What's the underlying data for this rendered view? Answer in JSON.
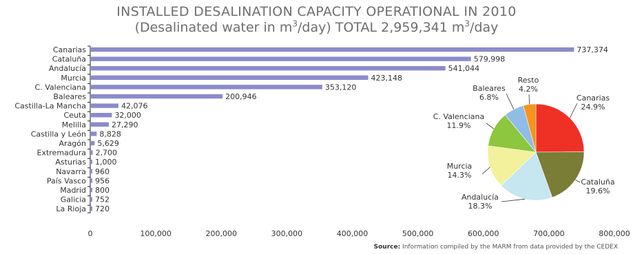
{
  "title_line1": "INSTALLED DESALINATION CAPACITY OPERATIONAL IN 2010",
  "title_line2_part1": "(Desalinated water in m",
  "title_line2_sup1": "3",
  "title_line2_part2": "/day) TOTAL 2,959,341 m",
  "title_line2_sup2": "3",
  "title_line2_part3": "/day",
  "source_label": "Source:",
  "source_text": " Information compiled by the MARM from data provided by the CEDEX",
  "colors": {
    "bar": "#8b8bcb",
    "axis": "#222222",
    "text": "#333333"
  },
  "chart_data": [
    {
      "type": "bar",
      "orientation": "horizontal",
      "categories": [
        "Canarias",
        "Cataluña",
        "Andalucía",
        "Murcia",
        "C. Valenciana",
        "Baleares",
        "Castilla-La Mancha",
        "Ceuta",
        "Melilla",
        "Castilla y León",
        "Aragón",
        "Extremadura",
        "Asturias",
        "Navarra",
        "País Vasco",
        "Madrid",
        "Galicia",
        "La Rioja"
      ],
      "values": [
        737374,
        579998,
        541044,
        423148,
        353120,
        200946,
        42076,
        32000,
        27290,
        8828,
        5629,
        2700,
        1000,
        960,
        956,
        800,
        752,
        720
      ],
      "value_labels": [
        "737,374",
        "579,998",
        "541,044",
        "423,148",
        "353,120",
        "200,946",
        "42,076",
        "32,000",
        "27,290",
        "8,828",
        "5,629",
        "2,700",
        "1,000",
        "960",
        "956",
        "800",
        "752",
        "720"
      ],
      "xlim": [
        0,
        800000
      ],
      "xticks": [
        0,
        100000,
        200000,
        300000,
        400000,
        500000,
        600000,
        700000,
        800000
      ],
      "xtick_labels": [
        "0",
        "100,000",
        "200,000",
        "300,000",
        "400,000",
        "500,000",
        "600,000",
        "700,000",
        "800,000"
      ],
      "grid": false
    },
    {
      "type": "pie",
      "slices": [
        {
          "label": "Canarias",
          "percent_label": "24.9%",
          "value": 24.9,
          "color": "#ee3124"
        },
        {
          "label": "Cataluña",
          "percent_label": "19.6%",
          "value": 19.6,
          "color": "#7a7d35"
        },
        {
          "label": "Andalucía",
          "percent_label": "18.3%",
          "value": 18.3,
          "color": "#c6e6f0"
        },
        {
          "label": "Murcia",
          "percent_label": "14.3%",
          "value": 14.3,
          "color": "#f3f19c"
        },
        {
          "label": "C. Valenciana",
          "percent_label": "11.9%",
          "value": 11.9,
          "color": "#8dc63f"
        },
        {
          "label": "Baleares",
          "percent_label": "6.8%",
          "value": 6.8,
          "color": "#8fbde6"
        },
        {
          "label": "Resto",
          "percent_label": "4.2%",
          "value": 4.2,
          "color": "#f7941d"
        }
      ]
    }
  ]
}
